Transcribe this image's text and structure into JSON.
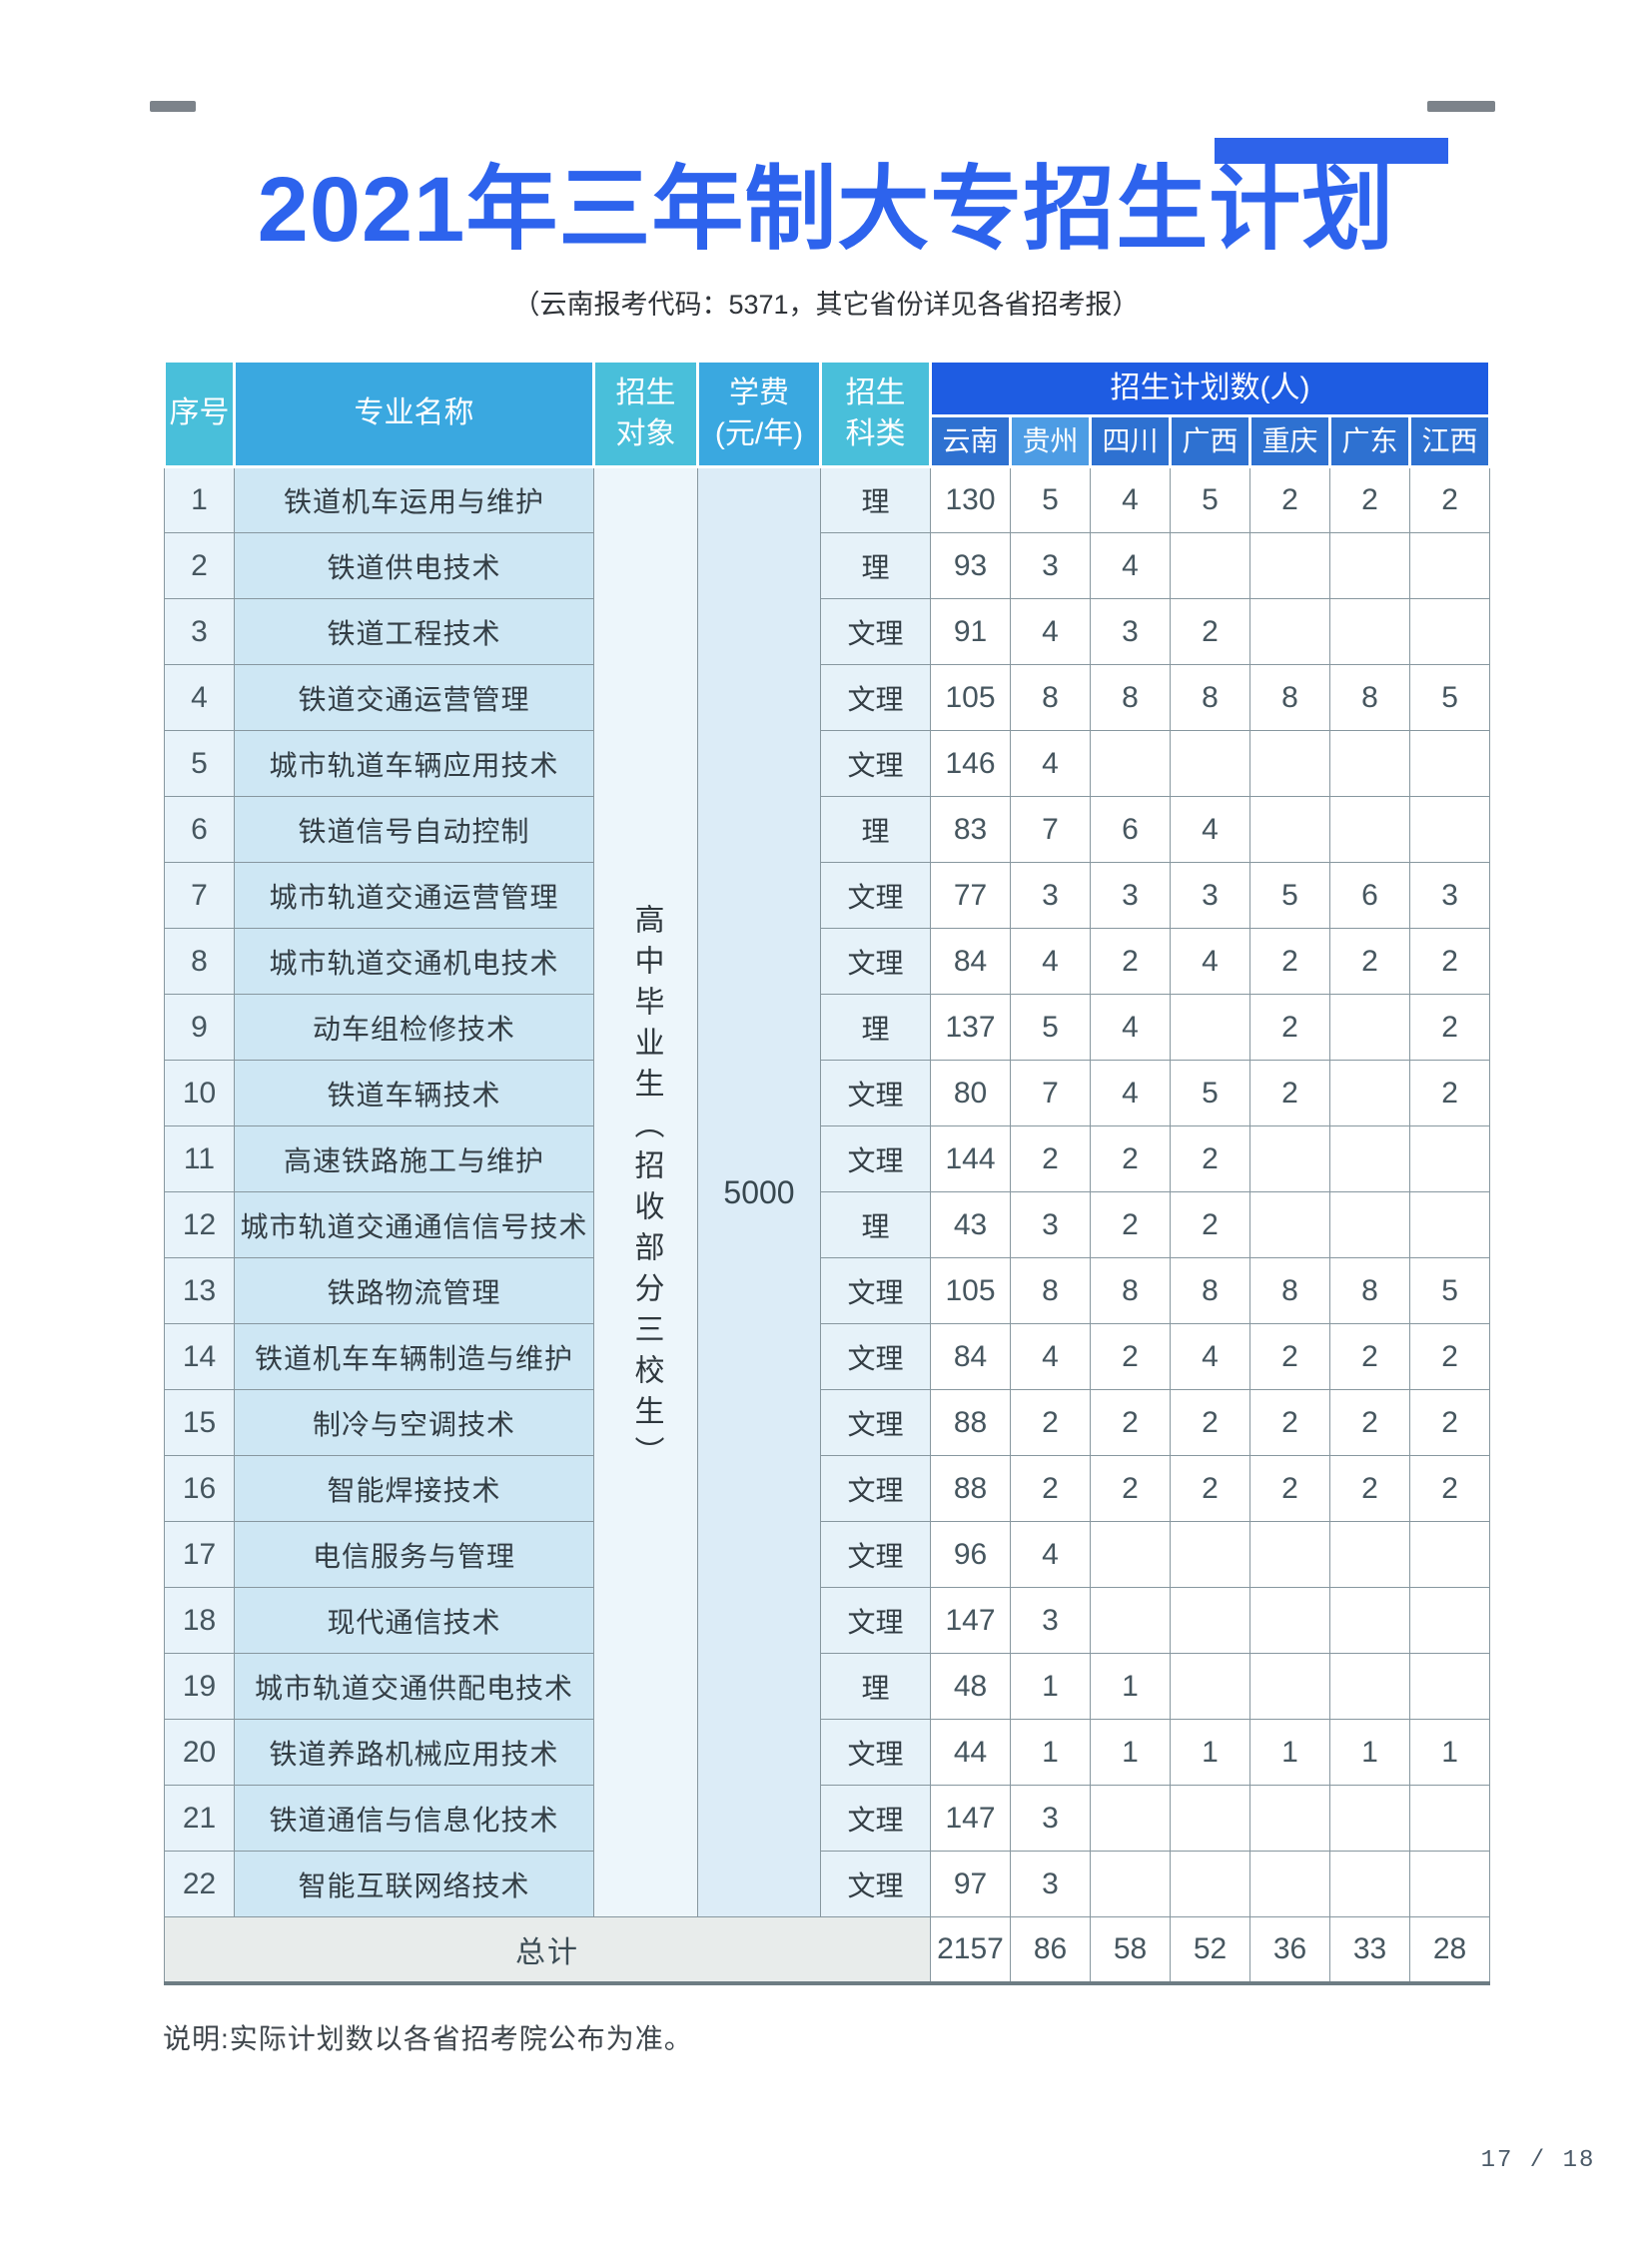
{
  "page": {
    "title": "2021年三年制大专招生计划",
    "subtitle": "（云南报考代码：5371，其它省份详见各省招考报）",
    "note": "说明:实际计划数以各省招考院公布为准。",
    "page_number": "17 / 18"
  },
  "colors": {
    "title_blue": "#2d63ed",
    "header_teal": "#49bfda",
    "header_sky_blue": "#3aa8e0",
    "plan_band_blue": "#1e5ce2",
    "province_blue": "#2e71d1",
    "province_light_blue": "#4d9ce4",
    "col_seq_bg": "#e8f3fa",
    "col_major_bg": "#cee7f4",
    "col_target_bg": "#edf6fb",
    "col_tuition_bg": "#dcecf7",
    "col_category_bg": "#e6f2f9",
    "total_row_bg": "#e8eceb"
  },
  "table": {
    "headers": {
      "seq": "序号",
      "major": "专业名称",
      "target": "招生对象",
      "tuition_lines": [
        "学费",
        "(元/年)"
      ],
      "category_lines": [
        "招生",
        "科类"
      ],
      "plan": "招生计划数(人)",
      "provinces": [
        "云南",
        "贵州",
        "四川",
        "广西",
        "重庆",
        "广东",
        "江西"
      ]
    },
    "target_text": "高中毕业生（招收部分三校生）",
    "tuition_value": "5000",
    "rows": [
      {
        "seq": "1",
        "major": "铁道机车运用与维护",
        "category": "理",
        "values": [
          "130",
          "5",
          "4",
          "5",
          "2",
          "2",
          "2"
        ]
      },
      {
        "seq": "2",
        "major": "铁道供电技术",
        "category": "理",
        "values": [
          "93",
          "3",
          "4",
          "",
          "",
          "",
          ""
        ]
      },
      {
        "seq": "3",
        "major": "铁道工程技术",
        "category": "文理",
        "values": [
          "91",
          "4",
          "3",
          "2",
          "",
          "",
          ""
        ]
      },
      {
        "seq": "4",
        "major": "铁道交通运营管理",
        "category": "文理",
        "values": [
          "105",
          "8",
          "8",
          "8",
          "8",
          "8",
          "5"
        ]
      },
      {
        "seq": "5",
        "major": "城市轨道车辆应用技术",
        "category": "文理",
        "values": [
          "146",
          "4",
          "",
          "",
          "",
          "",
          ""
        ]
      },
      {
        "seq": "6",
        "major": "铁道信号自动控制",
        "category": "理",
        "values": [
          "83",
          "7",
          "6",
          "4",
          "",
          "",
          ""
        ]
      },
      {
        "seq": "7",
        "major": "城市轨道交通运营管理",
        "category": "文理",
        "values": [
          "77",
          "3",
          "3",
          "3",
          "5",
          "6",
          "3"
        ]
      },
      {
        "seq": "8",
        "major": "城市轨道交通机电技术",
        "category": "文理",
        "values": [
          "84",
          "4",
          "2",
          "4",
          "2",
          "2",
          "2"
        ]
      },
      {
        "seq": "9",
        "major": "动车组检修技术",
        "category": "理",
        "values": [
          "137",
          "5",
          "4",
          "",
          "2",
          "",
          "2"
        ]
      },
      {
        "seq": "10",
        "major": "铁道车辆技术",
        "category": "文理",
        "values": [
          "80",
          "7",
          "4",
          "5",
          "2",
          "",
          "2"
        ]
      },
      {
        "seq": "11",
        "major": "高速铁路施工与维护",
        "category": "文理",
        "values": [
          "144",
          "2",
          "2",
          "2",
          "",
          "",
          ""
        ]
      },
      {
        "seq": "12",
        "major": "城市轨道交通通信信号技术",
        "category": "理",
        "values": [
          "43",
          "3",
          "2",
          "2",
          "",
          "",
          ""
        ]
      },
      {
        "seq": "13",
        "major": "铁路物流管理",
        "category": "文理",
        "values": [
          "105",
          "8",
          "8",
          "8",
          "8",
          "8",
          "5"
        ]
      },
      {
        "seq": "14",
        "major": "铁道机车车辆制造与维护",
        "category": "文理",
        "values": [
          "84",
          "4",
          "2",
          "4",
          "2",
          "2",
          "2"
        ]
      },
      {
        "seq": "15",
        "major": "制冷与空调技术",
        "category": "文理",
        "values": [
          "88",
          "2",
          "2",
          "2",
          "2",
          "2",
          "2"
        ]
      },
      {
        "seq": "16",
        "major": "智能焊接技术",
        "category": "文理",
        "values": [
          "88",
          "2",
          "2",
          "2",
          "2",
          "2",
          "2"
        ]
      },
      {
        "seq": "17",
        "major": "电信服务与管理",
        "category": "文理",
        "values": [
          "96",
          "4",
          "",
          "",
          "",
          "",
          ""
        ]
      },
      {
        "seq": "18",
        "major": "现代通信技术",
        "category": "文理",
        "values": [
          "147",
          "3",
          "",
          "",
          "",
          "",
          ""
        ]
      },
      {
        "seq": "19",
        "major": "城市轨道交通供配电技术",
        "category": "理",
        "values": [
          "48",
          "1",
          "1",
          "",
          "",
          "",
          ""
        ]
      },
      {
        "seq": "20",
        "major": "铁道养路机械应用技术",
        "category": "文理",
        "values": [
          "44",
          "1",
          "1",
          "1",
          "1",
          "1",
          "1"
        ]
      },
      {
        "seq": "21",
        "major": "铁道通信与信息化技术",
        "category": "文理",
        "values": [
          "147",
          "3",
          "",
          "",
          "",
          "",
          ""
        ]
      },
      {
        "seq": "22",
        "major": "智能互联网络技术",
        "category": "文理",
        "values": [
          "97",
          "3",
          "",
          "",
          "",
          "",
          ""
        ]
      }
    ],
    "total": {
      "label": "总计",
      "values": [
        "2157",
        "86",
        "58",
        "52",
        "36",
        "33",
        "28"
      ]
    }
  }
}
